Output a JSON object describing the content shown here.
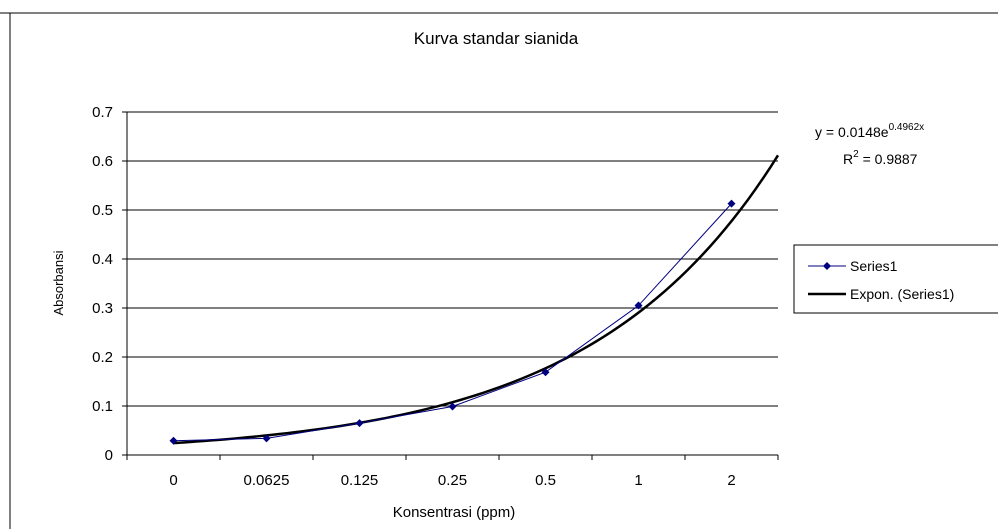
{
  "chart_data": {
    "type": "line",
    "title": "Kurva standar sianida",
    "xlabel": "Konsentrasi (ppm)",
    "ylabel": "Absorbansi",
    "categories": [
      "0",
      "0.0625",
      "0.125",
      "0.25",
      "0.5",
      "1",
      "2"
    ],
    "series": [
      {
        "name": "Series1",
        "values": [
          0.029,
          0.034,
          0.065,
          0.099,
          0.169,
          0.305,
          0.513
        ],
        "color": "#000080",
        "marker": "diamond"
      }
    ],
    "trendline": {
      "name": "Expon. (Series1)",
      "type": "exponential",
      "color": "#000000",
      "equation": {
        "y_prefix": "y = 0.0148e",
        "exponent": "0.4962x",
        "r2_prefix": "R",
        "r2_sup": "2",
        "r2_suffix": " = 0.9887"
      }
    },
    "ylim": [
      0,
      0.7
    ],
    "yticks": [
      "0",
      "0.1",
      "0.2",
      "0.3",
      "0.4",
      "0.5",
      "0.6",
      "0.7"
    ],
    "grid": true,
    "legend_position": "right"
  }
}
